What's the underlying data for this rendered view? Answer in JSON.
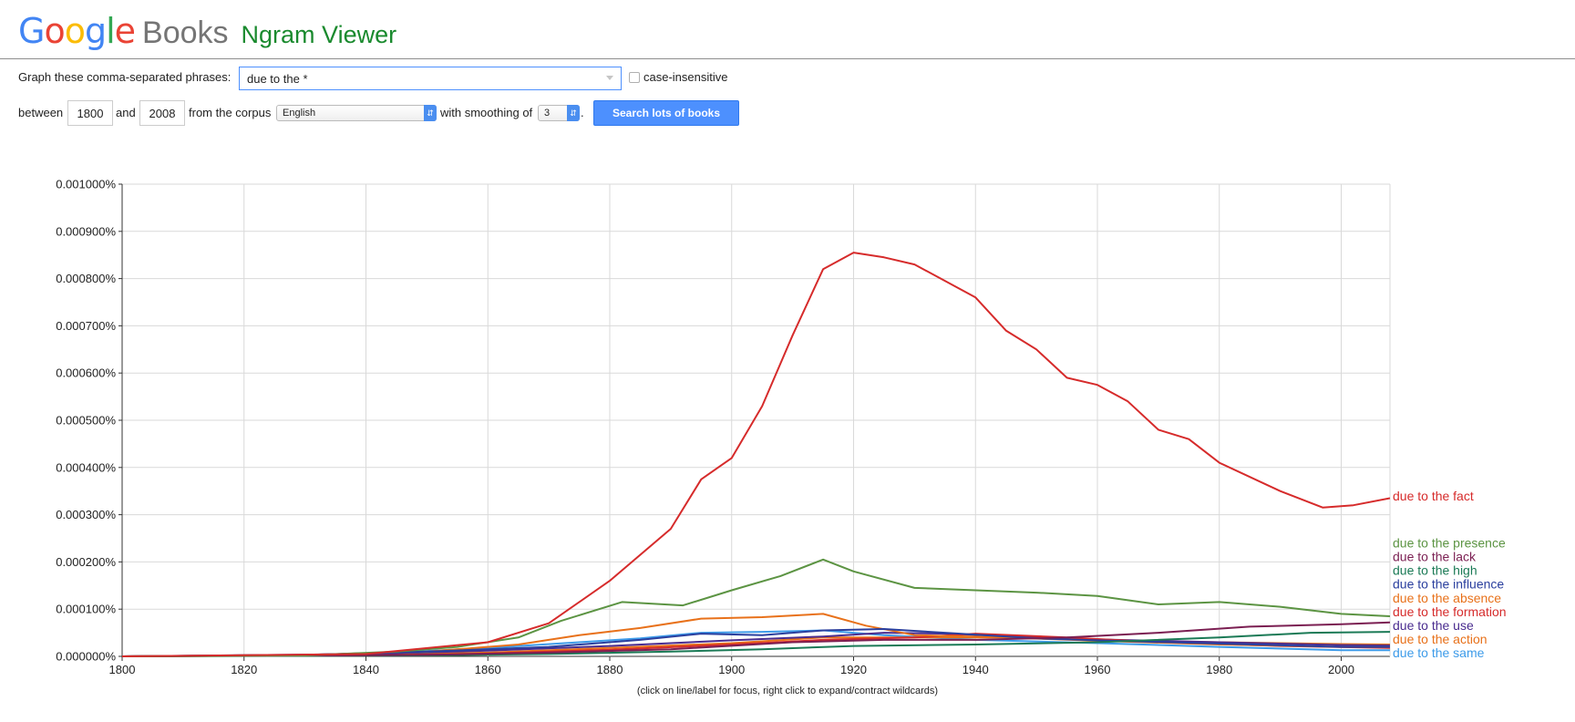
{
  "header": {
    "logo_letters": [
      {
        "char": "G",
        "color": "#4285f4"
      },
      {
        "char": "o",
        "color": "#ea4335"
      },
      {
        "char": "o",
        "color": "#fbbc05"
      },
      {
        "char": "g",
        "color": "#4285f4"
      },
      {
        "char": "l",
        "color": "#34a853"
      },
      {
        "char": "e",
        "color": "#ea4335"
      }
    ],
    "books": "Books",
    "product": "Ngram Viewer"
  },
  "form": {
    "phrases_label": "Graph these comma-separated phrases:",
    "query_value": "due to the *",
    "case_label": "case-insensitive",
    "case_checked": false,
    "between_label": "between",
    "start_year": "1800",
    "and_label": "and",
    "end_year": "2008",
    "corpus_label": "from the corpus",
    "corpus_value": "English",
    "smoothing_label": "with smoothing of",
    "smoothing_value": "3",
    "period": ".",
    "search_button": "Search lots of books"
  },
  "footnote": "(click on line/label for focus, right click to expand/contract wildcards)",
  "chart_data": {
    "type": "line",
    "xlim": [
      1800,
      2008
    ],
    "ylim": [
      0,
      0.001
    ],
    "x_ticks": [
      "1800",
      "1820",
      "1840",
      "1860",
      "1880",
      "1900",
      "1920",
      "1940",
      "1960",
      "1980",
      "2000"
    ],
    "y_ticks": [
      "0.000000%",
      "0.000100%",
      "0.000200%",
      "0.000300%",
      "0.000400%",
      "0.000500%",
      "0.000600%",
      "0.000700%",
      "0.000800%",
      "0.000900%",
      "0.001000%"
    ],
    "grid": true,
    "series": [
      {
        "name": "due to the same",
        "color": "#3d9be9",
        "label_value": 7.5e-06,
        "points": [
          [
            1800,
            0
          ],
          [
            1830,
            3e-06
          ],
          [
            1845,
            8e-06
          ],
          [
            1860,
            1.8e-05
          ],
          [
            1875,
            3e-05
          ],
          [
            1885,
            3.8e-05
          ],
          [
            1895,
            5e-05
          ],
          [
            1905,
            5.2e-05
          ],
          [
            1915,
            5.5e-05
          ],
          [
            1925,
            4.5e-05
          ],
          [
            1940,
            3.5e-05
          ],
          [
            1960,
            2.8e-05
          ],
          [
            1980,
            2e-05
          ],
          [
            2000,
            1.3e-05
          ],
          [
            2008,
            1.3e-05
          ]
        ]
      },
      {
        "name": "due to the action",
        "color": "#e8711a",
        "label_value": 3.7e-05,
        "points": [
          [
            1800,
            0
          ],
          [
            1840,
            3e-06
          ],
          [
            1860,
            8e-06
          ],
          [
            1880,
            1.8e-05
          ],
          [
            1900,
            2.8e-05
          ],
          [
            1915,
            4e-05
          ],
          [
            1930,
            4e-05
          ],
          [
            1945,
            4e-05
          ],
          [
            1960,
            3.4e-05
          ],
          [
            1980,
            3e-05
          ],
          [
            2000,
            2.6e-05
          ],
          [
            2008,
            2.5e-05
          ]
        ]
      },
      {
        "name": "due to the use",
        "color": "#4a2c8f",
        "label_value": 6.6e-05,
        "points": [
          [
            1800,
            0
          ],
          [
            1840,
            5e-06
          ],
          [
            1860,
            1.2e-05
          ],
          [
            1880,
            2.2e-05
          ],
          [
            1900,
            3.4e-05
          ],
          [
            1915,
            4.2e-05
          ],
          [
            1925,
            5e-05
          ],
          [
            1935,
            4.8e-05
          ],
          [
            1950,
            4e-05
          ],
          [
            1960,
            3.6e-05
          ],
          [
            1980,
            3e-05
          ],
          [
            2000,
            2.4e-05
          ],
          [
            2008,
            2.3e-05
          ]
        ]
      },
      {
        "name": "due to the formation",
        "color": "#d62b2b",
        "label_value": 9.5e-05,
        "points": [
          [
            1800,
            0
          ],
          [
            1840,
            2e-06
          ],
          [
            1860,
            6e-06
          ],
          [
            1880,
            1.4e-05
          ],
          [
            1900,
            2.5e-05
          ],
          [
            1915,
            3.5e-05
          ],
          [
            1930,
            4e-05
          ],
          [
            1940,
            4.8e-05
          ],
          [
            1955,
            4e-05
          ],
          [
            1970,
            3e-05
          ],
          [
            1990,
            2.2e-05
          ],
          [
            2008,
            1.8e-05
          ]
        ]
      },
      {
        "name": "due to the absence",
        "color": "#e8711a",
        "label_value": 0.000124,
        "points": [
          [
            1800,
            0
          ],
          [
            1830,
            3e-06
          ],
          [
            1850,
            1e-05
          ],
          [
            1865,
            2.5e-05
          ],
          [
            1875,
            4.5e-05
          ],
          [
            1885,
            6e-05
          ],
          [
            1895,
            8e-05
          ],
          [
            1905,
            8.3e-05
          ],
          [
            1915,
            9e-05
          ],
          [
            1922,
            6.5e-05
          ],
          [
            1930,
            4.5e-05
          ],
          [
            1945,
            4e-05
          ],
          [
            1960,
            3.3e-05
          ],
          [
            1980,
            2.5e-05
          ],
          [
            2000,
            2e-05
          ],
          [
            2008,
            2e-05
          ]
        ]
      },
      {
        "name": "due to the influence",
        "color": "#2a3f9e",
        "label_value": 0.000153,
        "points": [
          [
            1800,
            0
          ],
          [
            1830,
            3e-06
          ],
          [
            1850,
            1e-05
          ],
          [
            1870,
            2e-05
          ],
          [
            1885,
            3.5e-05
          ],
          [
            1895,
            4.8e-05
          ],
          [
            1905,
            4.5e-05
          ],
          [
            1915,
            5.5e-05
          ],
          [
            1925,
            5.8e-05
          ],
          [
            1935,
            5e-05
          ],
          [
            1950,
            3.8e-05
          ],
          [
            1960,
            3.4e-05
          ],
          [
            1980,
            2.7e-05
          ],
          [
            2000,
            2e-05
          ],
          [
            2008,
            2e-05
          ]
        ]
      },
      {
        "name": "due to the high",
        "color": "#1b7a56",
        "label_value": 0.000182,
        "points": [
          [
            1800,
            0
          ],
          [
            1850,
            2e-06
          ],
          [
            1870,
            5e-06
          ],
          [
            1890,
            1e-05
          ],
          [
            1905,
            1.5e-05
          ],
          [
            1920,
            2.2e-05
          ],
          [
            1940,
            2.5e-05
          ],
          [
            1960,
            3e-05
          ],
          [
            1980,
            4e-05
          ],
          [
            1995,
            5e-05
          ],
          [
            2008,
            5.2e-05
          ]
        ]
      },
      {
        "name": "due to the lack",
        "color": "#7b1f52",
        "label_value": 0.000211,
        "points": [
          [
            1800,
            0
          ],
          [
            1850,
            3e-06
          ],
          [
            1870,
            8e-06
          ],
          [
            1890,
            1.5e-05
          ],
          [
            1910,
            3e-05
          ],
          [
            1925,
            3.5e-05
          ],
          [
            1940,
            3.5e-05
          ],
          [
            1955,
            4e-05
          ],
          [
            1970,
            5e-05
          ],
          [
            1985,
            6.3e-05
          ],
          [
            2000,
            6.8e-05
          ],
          [
            2008,
            7.2e-05
          ]
        ]
      },
      {
        "name": "due to the presence",
        "color": "#5c9443",
        "label_value": 0.00024,
        "points": [
          [
            1800,
            0
          ],
          [
            1830,
            2e-06
          ],
          [
            1845,
            1e-05
          ],
          [
            1855,
            2e-05
          ],
          [
            1865,
            4e-05
          ],
          [
            1872,
            7.5e-05
          ],
          [
            1882,
            0.000115
          ],
          [
            1892,
            0.000108
          ],
          [
            1900,
            0.00014
          ],
          [
            1908,
            0.00017
          ],
          [
            1915,
            0.000205
          ],
          [
            1920,
            0.00018
          ],
          [
            1930,
            0.000145
          ],
          [
            1940,
            0.00014
          ],
          [
            1950,
            0.000135
          ],
          [
            1960,
            0.000128
          ],
          [
            1970,
            0.00011
          ],
          [
            1980,
            0.000115
          ],
          [
            1990,
            0.000105
          ],
          [
            2000,
            9e-05
          ],
          [
            2008,
            8.5e-05
          ]
        ]
      },
      {
        "name": "due to the fact",
        "color": "#d62b2b",
        "label_value": 0.00034,
        "points": [
          [
            1800,
            0
          ],
          [
            1840,
            5e-06
          ],
          [
            1860,
            3e-05
          ],
          [
            1870,
            7e-05
          ],
          [
            1880,
            0.00016
          ],
          [
            1890,
            0.00027
          ],
          [
            1895,
            0.000375
          ],
          [
            1900,
            0.00042
          ],
          [
            1905,
            0.00053
          ],
          [
            1910,
            0.00068
          ],
          [
            1915,
            0.00082
          ],
          [
            1920,
            0.000855
          ],
          [
            1925,
            0.000845
          ],
          [
            1930,
            0.00083
          ],
          [
            1940,
            0.00076
          ],
          [
            1945,
            0.00069
          ],
          [
            1950,
            0.00065
          ],
          [
            1955,
            0.00059
          ],
          [
            1960,
            0.000575
          ],
          [
            1965,
            0.00054
          ],
          [
            1970,
            0.00048
          ],
          [
            1975,
            0.00046
          ],
          [
            1980,
            0.00041
          ],
          [
            1990,
            0.00035
          ],
          [
            1997,
            0.000315
          ],
          [
            2002,
            0.00032
          ],
          [
            2008,
            0.000335
          ]
        ]
      }
    ]
  }
}
